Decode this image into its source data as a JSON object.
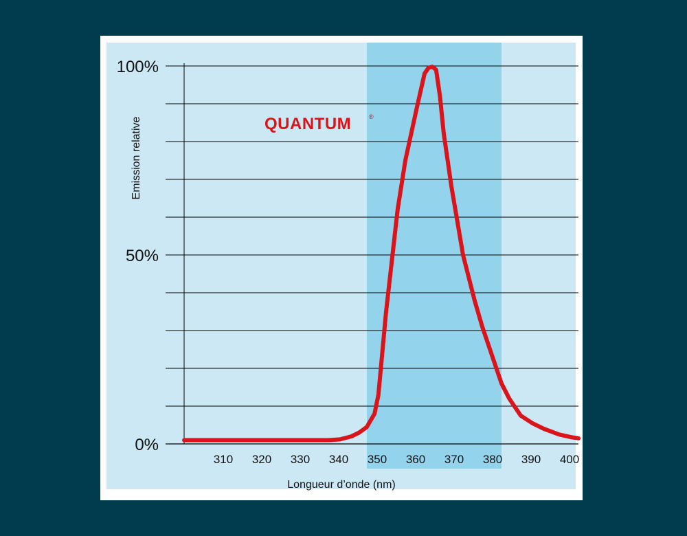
{
  "chart_data": {
    "type": "line",
    "title": "",
    "brand": "QUANTUM",
    "brand_mark": "®",
    "xlabel": "Longueur d’onde (nm)",
    "ylabel": "Emission relative",
    "x_ticks": [
      "310",
      "320",
      "330",
      "340",
      "350",
      "360",
      "370",
      "380",
      "390",
      "400"
    ],
    "y_ticks": [
      "0%",
      "50%",
      "100%"
    ],
    "xlim": [
      302.5,
      405
    ],
    "ylim": [
      0,
      100
    ],
    "grid_y_step": 10,
    "highlight_band": [
      350,
      385
    ],
    "series": [
      {
        "color": "#d9141b",
        "x": [
          302.5,
          340,
          343,
          346,
          348,
          350,
          352,
          353,
          355,
          358,
          360,
          363,
          365,
          366,
          367,
          368,
          369,
          370,
          372,
          375,
          378,
          380,
          383,
          385,
          387,
          390,
          393,
          396,
          400,
          403,
          405
        ],
        "y": [
          1,
          1,
          1.2,
          2,
          3,
          4.5,
          8,
          13,
          35,
          62,
          75,
          89,
          98,
          99.5,
          99.8,
          99,
          92,
          82,
          68,
          50,
          38,
          31,
          22,
          16,
          12,
          7.5,
          5.5,
          4,
          2.5,
          1.8,
          1.5
        ]
      }
    ],
    "colors": {
      "background": "#003c4d",
      "plot_area": "#cbe8f4",
      "band": "#93d3ec",
      "grid": "#000000",
      "line": "#d9141b"
    }
  }
}
